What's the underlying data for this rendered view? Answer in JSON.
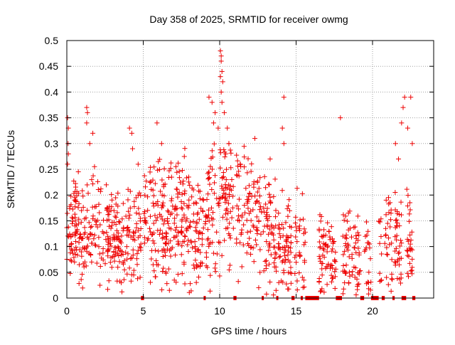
{
  "chart_data": {
    "type": "scatter",
    "title": "Day 358 of 2025, SRMTID for receiver owmg",
    "xlabel": "GPS time / hours",
    "ylabel": "SRMTID / TECUs",
    "xlim": [
      0,
      24
    ],
    "ylim": [
      0,
      0.5
    ],
    "x_ticks": [
      0,
      5,
      10,
      15,
      20
    ],
    "x_tick_labels": [
      "0",
      "5",
      "10",
      "15",
      "20"
    ],
    "y_ticks": [
      0,
      0.05,
      0.1,
      0.15,
      0.2,
      0.25,
      0.3,
      0.35,
      0.4,
      0.45,
      0.5
    ],
    "y_tick_labels": [
      "0",
      "0.05",
      "0.1",
      "0.15",
      "0.2",
      "0.25",
      "0.3",
      "0.35",
      "0.4",
      "0.45",
      "0.5"
    ],
    "grid": true,
    "series": [
      {
        "name": "SRMTID",
        "marker": "plus",
        "color": "#ee0000",
        "trend": [
          [
            0.0,
            0.13
          ],
          [
            0.5,
            0.15
          ],
          [
            1.0,
            0.11
          ],
          [
            1.5,
            0.14
          ],
          [
            2.0,
            0.13
          ],
          [
            2.5,
            0.12
          ],
          [
            3.0,
            0.12
          ],
          [
            3.5,
            0.11
          ],
          [
            4.0,
            0.13
          ],
          [
            4.5,
            0.14
          ],
          [
            5.0,
            0.14
          ],
          [
            5.5,
            0.16
          ],
          [
            6.0,
            0.14
          ],
          [
            6.5,
            0.14
          ],
          [
            7.0,
            0.16
          ],
          [
            7.5,
            0.17
          ],
          [
            8.0,
            0.16
          ],
          [
            8.5,
            0.13
          ],
          [
            9.0,
            0.14
          ],
          [
            9.5,
            0.19
          ],
          [
            10.0,
            0.2
          ],
          [
            10.5,
            0.2
          ],
          [
            11.0,
            0.18
          ],
          [
            11.5,
            0.18
          ],
          [
            12.0,
            0.17
          ],
          [
            12.5,
            0.15
          ],
          [
            13.0,
            0.13
          ],
          [
            13.5,
            0.13
          ],
          [
            14.0,
            0.1
          ],
          [
            14.5,
            0.1
          ],
          [
            15.0,
            0.11
          ],
          [
            15.5,
            0.1
          ],
          [
            16.0,
            0.08
          ],
          [
            16.5,
            0.08
          ],
          [
            17.0,
            0.08
          ],
          [
            17.5,
            0.08
          ],
          [
            18.0,
            0.08
          ],
          [
            18.5,
            0.08
          ],
          [
            19.0,
            0.09
          ],
          [
            19.5,
            0.08
          ],
          [
            20.0,
            0.06
          ],
          [
            20.5,
            0.08
          ],
          [
            21.0,
            0.11
          ],
          [
            21.5,
            0.1
          ],
          [
            22.0,
            0.13
          ],
          [
            22.5,
            0.1
          ],
          [
            22.8,
            0.04
          ]
        ],
        "highlights": [
          [
            0.05,
            0.35
          ],
          [
            0.1,
            0.33
          ],
          [
            0.08,
            0.3
          ],
          [
            0.1,
            0.28
          ],
          [
            0.05,
            0.26
          ],
          [
            1.3,
            0.37
          ],
          [
            1.35,
            0.36
          ],
          [
            1.3,
            0.34
          ],
          [
            1.5,
            0.3
          ],
          [
            1.7,
            0.32
          ],
          [
            4.1,
            0.33
          ],
          [
            4.25,
            0.32
          ],
          [
            4.3,
            0.29
          ],
          [
            5.9,
            0.34
          ],
          [
            6.2,
            0.3
          ],
          [
            9.3,
            0.39
          ],
          [
            9.5,
            0.38
          ],
          [
            9.6,
            0.34
          ],
          [
            9.7,
            0.36
          ],
          [
            9.9,
            0.33
          ],
          [
            10.05,
            0.48
          ],
          [
            10.1,
            0.47
          ],
          [
            10.1,
            0.46
          ],
          [
            10.15,
            0.44
          ],
          [
            10.05,
            0.43
          ],
          [
            10.2,
            0.42
          ],
          [
            10.1,
            0.4
          ],
          [
            10.15,
            0.38
          ],
          [
            10.3,
            0.36
          ],
          [
            10.5,
            0.33
          ],
          [
            10.6,
            0.3
          ],
          [
            10.4,
            0.28
          ],
          [
            12.3,
            0.31
          ],
          [
            13.3,
            0.27
          ],
          [
            14.2,
            0.39
          ],
          [
            14.1,
            0.33
          ],
          [
            14.2,
            0.3
          ],
          [
            17.9,
            0.35
          ],
          [
            21.5,
            0.3
          ],
          [
            21.7,
            0.27
          ],
          [
            21.9,
            0.34
          ],
          [
            22.0,
            0.37
          ],
          [
            22.1,
            0.39
          ],
          [
            22.3,
            0.33
          ],
          [
            22.5,
            0.39
          ],
          [
            22.6,
            0.3
          ]
        ],
        "zero_gaps": [
          [
            4.85,
            5.05
          ],
          [
            8.95,
            9.05
          ],
          [
            10.9,
            11.1
          ],
          [
            12.75,
            12.85
          ],
          [
            13.7,
            13.8
          ],
          [
            14.7,
            14.9
          ],
          [
            15.3,
            15.4
          ],
          [
            15.6,
            16.5
          ],
          [
            17.6,
            18.0
          ],
          [
            19.2,
            19.45
          ],
          [
            19.9,
            20.4
          ],
          [
            20.6,
            20.8
          ],
          [
            21.3,
            21.45
          ],
          [
            21.9,
            22.2
          ],
          [
            22.6,
            22.8
          ]
        ],
        "spread": 0.055,
        "count": 1500
      }
    ]
  }
}
